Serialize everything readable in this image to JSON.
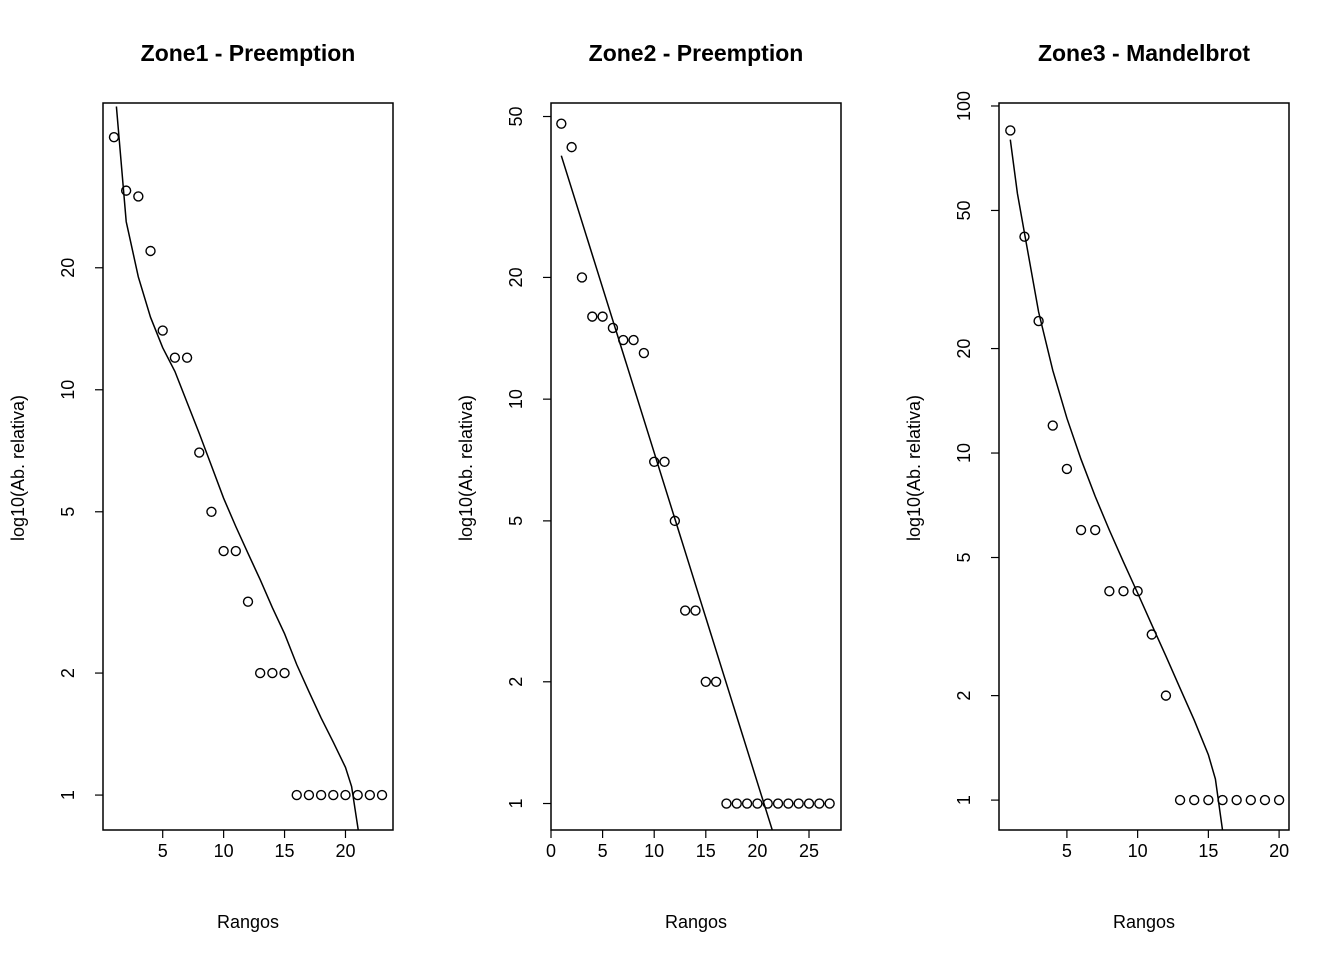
{
  "chart_data": [
    {
      "type": "scatter",
      "title": "Zone1 - Preemption",
      "xlabel": "Rangos",
      "ylabel": "log10(Ab. relativa)",
      "y_scale": "log",
      "xlim": [
        0.1,
        23.9
      ],
      "ylim": [
        0.82,
        51
      ],
      "x_ticks": [
        5,
        10,
        15,
        20
      ],
      "y_ticks": [
        1,
        2,
        5,
        10,
        20
      ],
      "points": {
        "x": [
          1,
          2,
          3,
          4,
          5,
          6,
          7,
          8,
          9,
          10,
          11,
          12,
          13,
          14,
          15,
          16,
          17,
          18,
          19,
          20,
          21,
          22,
          23
        ],
        "y": [
          42,
          31,
          30,
          22,
          14,
          12,
          12,
          7,
          5,
          4,
          4,
          3,
          2,
          2,
          2,
          1,
          1,
          1,
          1,
          1,
          1,
          1,
          1
        ]
      },
      "fit": {
        "x": [
          1.2,
          2,
          3,
          4,
          5,
          6,
          7,
          8,
          9,
          10,
          11,
          12,
          13,
          14,
          15,
          16,
          17,
          18,
          19,
          20,
          20.5,
          21.1
        ],
        "y": [
          50,
          26,
          19,
          15.1,
          12.7,
          11.1,
          9.3,
          7.8,
          6.5,
          5.4,
          4.6,
          3.95,
          3.4,
          2.9,
          2.5,
          2.1,
          1.8,
          1.55,
          1.35,
          1.17,
          1.05,
          0.8
        ]
      }
    },
    {
      "type": "scatter",
      "title": "Zone2 - Preemption",
      "xlabel": "Rangos",
      "ylabel": "log10(Ab. relativa)",
      "y_scale": "log",
      "xlim": [
        0,
        28.1
      ],
      "ylim": [
        0.86,
        54
      ],
      "x_ticks": [
        0,
        5,
        10,
        15,
        20,
        25
      ],
      "y_ticks": [
        1,
        2,
        5,
        10,
        20,
        50
      ],
      "points": {
        "x": [
          1,
          2,
          3,
          4,
          5,
          6,
          7,
          8,
          9,
          10,
          11,
          12,
          13,
          14,
          15,
          16,
          17,
          18,
          19,
          20,
          21,
          22,
          23,
          24,
          25,
          26,
          27
        ],
        "y": [
          48,
          42,
          20,
          16,
          16,
          15,
          14,
          14,
          13,
          7,
          7,
          5,
          3,
          3,
          2,
          2,
          1,
          1,
          1,
          1,
          1,
          1,
          1,
          1,
          1,
          1,
          1
        ]
      },
      "fit": {
        "x": [
          1,
          21.5
        ],
        "y": [
          40,
          0.85
        ]
      }
    },
    {
      "type": "scatter",
      "title": "Zone3 - Mandelbrot",
      "xlabel": "Rangos",
      "ylabel": "log10(Ab. relativa)",
      "y_scale": "log",
      "xlim": [
        0.2,
        20.7
      ],
      "ylim": [
        0.82,
        102
      ],
      "x_ticks": [
        5,
        10,
        15,
        20
      ],
      "y_ticks": [
        1,
        2,
        5,
        10,
        20,
        50,
        100
      ],
      "points": {
        "x": [
          1,
          2,
          3,
          4,
          5,
          6,
          7,
          8,
          9,
          10,
          11,
          12,
          13,
          14,
          15,
          16,
          17,
          18,
          19,
          20
        ],
        "y": [
          85,
          42,
          24,
          12,
          9,
          6,
          6,
          4,
          4,
          4,
          3,
          2,
          1,
          1,
          1,
          1,
          1,
          1,
          1,
          1
        ]
      },
      "fit": {
        "x": [
          1,
          1.5,
          2,
          3,
          4,
          5,
          6,
          7,
          8,
          9,
          10,
          11,
          12,
          13,
          14,
          15,
          15.5,
          16
        ],
        "y": [
          80,
          56,
          43,
          25.5,
          17.3,
          12.6,
          9.6,
          7.5,
          6,
          4.85,
          3.95,
          3.2,
          2.6,
          2.1,
          1.7,
          1.35,
          1.15,
          0.82
        ]
      }
    }
  ]
}
